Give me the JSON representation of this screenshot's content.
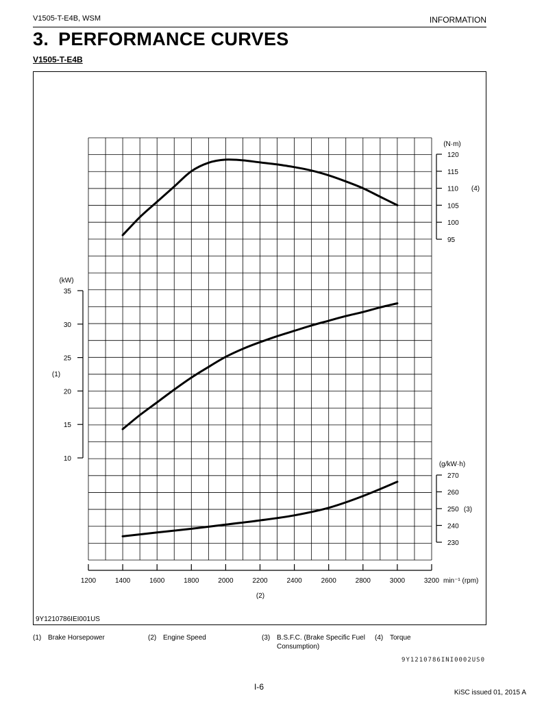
{
  "header": {
    "manual": "V1505-T-E4B, WSM",
    "chapter": "INFORMATION"
  },
  "section": {
    "number": "3.",
    "title": "PERFORMANCE CURVES",
    "model": "V1505-T-E4B"
  },
  "figure_code": "9Y1210786IEI001US",
  "legend": [
    {
      "num": "(1)",
      "label": "Brake Horsepower"
    },
    {
      "num": "(2)",
      "label": "Engine Speed"
    },
    {
      "num": "(3)",
      "label": "B.S.F.C. (Brake Specific Fuel Consumption)"
    },
    {
      "num": "(4)",
      "label": "Torque"
    }
  ],
  "reference_code": "9Y1210786INI0002US0",
  "footer": {
    "page": "I-6",
    "issue": "KiSC issued 01, 2015 A"
  },
  "chart_data": {
    "type": "line",
    "x": {
      "label": "(2)",
      "unit": "min⁻¹ (rpm)",
      "range": [
        1200,
        3200
      ],
      "ticks": [
        1200,
        1400,
        1600,
        1800,
        2000,
        2200,
        2400,
        2600,
        2800,
        3000,
        3200
      ]
    },
    "grid": true,
    "series": [
      {
        "name": "(4)",
        "axis_unit": "(N·m)",
        "range": [
          95,
          120
        ],
        "ticks": [
          95,
          100,
          105,
          110,
          115,
          120
        ],
        "points": [
          [
            1400,
            96.2
          ],
          [
            1500,
            101.5
          ],
          [
            1600,
            106
          ],
          [
            1700,
            110.5
          ],
          [
            1800,
            115
          ],
          [
            1900,
            117.5
          ],
          [
            2000,
            118.4
          ],
          [
            2100,
            118.2
          ],
          [
            2200,
            117.6
          ],
          [
            2300,
            117
          ],
          [
            2400,
            116.2
          ],
          [
            2500,
            115.2
          ],
          [
            2600,
            113.8
          ],
          [
            2700,
            112
          ],
          [
            2800,
            110
          ],
          [
            2900,
            107.5
          ],
          [
            3000,
            105
          ]
        ]
      },
      {
        "name": "(1)",
        "axis_unit": "(kW)",
        "range": [
          10,
          35
        ],
        "ticks": [
          10,
          15,
          20,
          25,
          30,
          35
        ],
        "points": [
          [
            1400,
            14.3
          ],
          [
            1500,
            16.4
          ],
          [
            1600,
            18.3
          ],
          [
            1700,
            20.2
          ],
          [
            1800,
            22
          ],
          [
            1900,
            23.6
          ],
          [
            2000,
            25.1
          ],
          [
            2100,
            26.3
          ],
          [
            2200,
            27.3
          ],
          [
            2300,
            28.2
          ],
          [
            2400,
            29
          ],
          [
            2500,
            29.8
          ],
          [
            2600,
            30.5
          ],
          [
            2700,
            31.2
          ],
          [
            2800,
            31.8
          ],
          [
            2900,
            32.5
          ],
          [
            3000,
            33.1
          ]
        ]
      },
      {
        "name": "(3)",
        "axis_unit": "(g/kW·h)",
        "range": [
          230,
          270
        ],
        "ticks": [
          230,
          240,
          250,
          260,
          270
        ],
        "points": [
          [
            1400,
            233.5
          ],
          [
            1600,
            235.8
          ],
          [
            1800,
            238
          ],
          [
            2000,
            240.5
          ],
          [
            2200,
            243
          ],
          [
            2400,
            246
          ],
          [
            2600,
            250.5
          ],
          [
            2800,
            257.5
          ],
          [
            3000,
            266
          ]
        ]
      }
    ]
  }
}
